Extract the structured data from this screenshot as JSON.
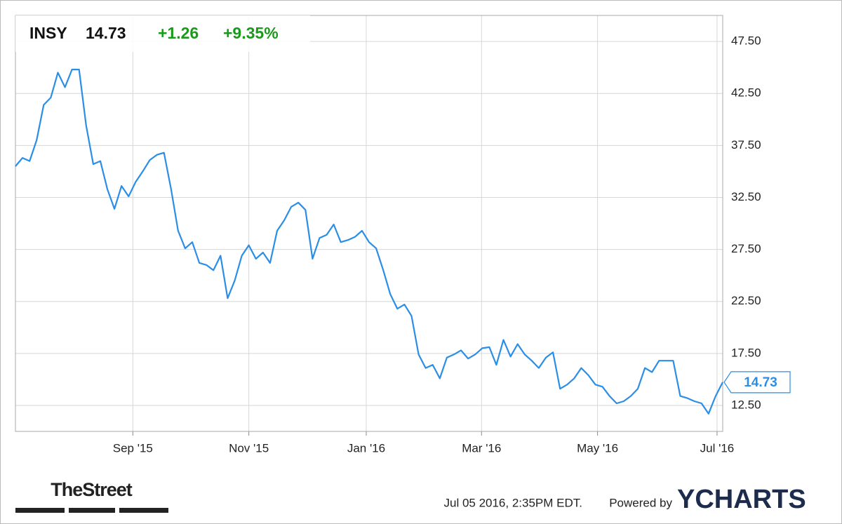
{
  "chart_data": {
    "type": "line",
    "ticker": "INSY",
    "price": "14.73",
    "change": "+1.26",
    "change_percent": "+9.35%",
    "color": "#2b8ee6",
    "values": [
      35.5,
      36.3,
      36.0,
      38.0,
      41.4,
      42.1,
      44.5,
      43.1,
      44.8,
      44.8,
      39.4,
      35.7,
      36.0,
      33.3,
      31.4,
      33.6,
      32.6,
      34.0,
      35.0,
      36.1,
      36.6,
      36.8,
      33.3,
      29.3,
      27.6,
      28.2,
      26.2,
      26.0,
      25.5,
      26.9,
      22.8,
      24.5,
      26.9,
      27.9,
      26.6,
      27.2,
      26.2,
      29.3,
      30.3,
      31.6,
      32.0,
      31.3,
      26.6,
      28.6,
      28.9,
      29.9,
      28.2,
      28.4,
      28.7,
      29.3,
      28.2,
      27.6,
      25.5,
      23.2,
      21.8,
      22.2,
      21.1,
      17.4,
      16.1,
      16.4,
      15.1,
      17.1,
      17.4,
      17.8,
      17.0,
      17.4,
      18.0,
      18.1,
      16.4,
      18.8,
      17.2,
      18.4,
      17.4,
      16.8,
      16.1,
      17.1,
      17.6,
      14.1,
      14.5,
      15.1,
      16.1,
      15.4,
      14.5,
      14.3,
      13.4,
      12.7,
      12.9,
      13.4,
      14.1,
      16.1,
      15.7,
      16.8,
      16.8,
      16.8,
      13.4,
      13.2,
      12.9,
      12.7,
      11.7,
      13.4,
      14.73
    ],
    "xlim": [
      0,
      100
    ],
    "xticks": [
      {
        "value": 16.6,
        "label": "Sep '15"
      },
      {
        "value": 33.0,
        "label": "Nov '15"
      },
      {
        "value": 49.6,
        "label": "Jan '16"
      },
      {
        "value": 65.9,
        "label": "Mar '16"
      },
      {
        "value": 82.3,
        "label": "May '16"
      },
      {
        "value": 99.2,
        "label": "Jul '16"
      }
    ],
    "ylim": [
      10,
      50
    ],
    "yticks": [
      {
        "value": 12.5,
        "label": "12.50"
      },
      {
        "value": 17.5,
        "label": "17.50"
      },
      {
        "value": 22.5,
        "label": "22.50"
      },
      {
        "value": 27.5,
        "label": "27.50"
      },
      {
        "value": 32.5,
        "label": "32.50"
      },
      {
        "value": 37.5,
        "label": "37.50"
      },
      {
        "value": 42.5,
        "label": "42.50"
      },
      {
        "value": 47.5,
        "label": "47.50"
      }
    ],
    "grid": true,
    "source_logo": "TheStreet",
    "timestamp": "Jul 05 2016, 2:35PM EDT.",
    "powered_by": "Powered by",
    "brand": "YCHARTS"
  }
}
